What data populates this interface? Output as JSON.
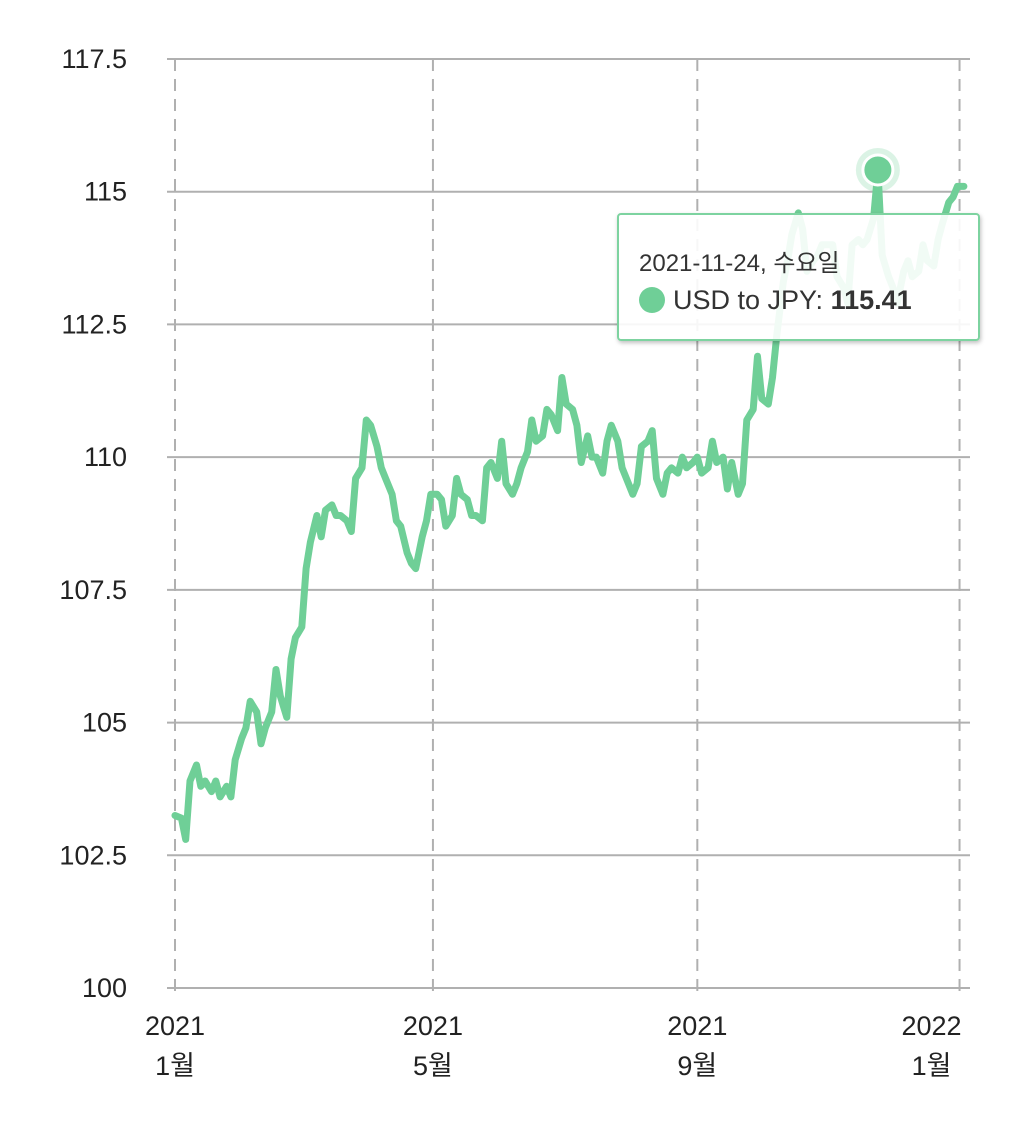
{
  "chart_data": {
    "type": "line",
    "title": "",
    "xlabel": "",
    "ylabel": "",
    "ylim": [
      100,
      117.5
    ],
    "xlim": [
      "2021-01-01",
      "2022-01-04"
    ],
    "yticks": [
      "100",
      "102.5",
      "105",
      "107.5",
      "110",
      "112.5",
      "115",
      "117.5"
    ],
    "xticks": [
      {
        "date": "2021-01-01",
        "year": "2021",
        "month": "1월"
      },
      {
        "date": "2021-05-01",
        "year": "2021",
        "month": "5월"
      },
      {
        "date": "2021-09-01",
        "year": "2021",
        "month": "9월"
      },
      {
        "date": "2022-01-01",
        "year": "2022",
        "month": "1월"
      }
    ],
    "grid": {
      "horizontal": "solid",
      "vertical": "dashed"
    },
    "series": [
      {
        "name": "USD to JPY",
        "color": "#6fcf97",
        "points": [
          [
            "2021-01-01",
            103.25
          ],
          [
            "2021-01-04",
            103.2
          ],
          [
            "2021-01-06",
            102.8
          ],
          [
            "2021-01-08",
            103.9
          ],
          [
            "2021-01-11",
            104.2
          ],
          [
            "2021-01-13",
            103.8
          ],
          [
            "2021-01-15",
            103.9
          ],
          [
            "2021-01-18",
            103.7
          ],
          [
            "2021-01-20",
            103.9
          ],
          [
            "2021-01-22",
            103.6
          ],
          [
            "2021-01-25",
            103.8
          ],
          [
            "2021-01-27",
            103.6
          ],
          [
            "2021-01-29",
            104.3
          ],
          [
            "2021-02-01",
            104.7
          ],
          [
            "2021-02-03",
            104.9
          ],
          [
            "2021-02-05",
            105.4
          ],
          [
            "2021-02-08",
            105.2
          ],
          [
            "2021-02-10",
            104.6
          ],
          [
            "2021-02-12",
            104.9
          ],
          [
            "2021-02-15",
            105.2
          ],
          [
            "2021-02-17",
            106.0
          ],
          [
            "2021-02-19",
            105.5
          ],
          [
            "2021-02-22",
            105.1
          ],
          [
            "2021-02-24",
            106.2
          ],
          [
            "2021-02-26",
            106.6
          ],
          [
            "2021-03-01",
            106.8
          ],
          [
            "2021-03-03",
            107.9
          ],
          [
            "2021-03-05",
            108.4
          ],
          [
            "2021-03-08",
            108.9
          ],
          [
            "2021-03-10",
            108.5
          ],
          [
            "2021-03-12",
            109.0
          ],
          [
            "2021-03-15",
            109.1
          ],
          [
            "2021-03-17",
            108.9
          ],
          [
            "2021-03-19",
            108.9
          ],
          [
            "2021-03-22",
            108.8
          ],
          [
            "2021-03-24",
            108.6
          ],
          [
            "2021-03-26",
            109.6
          ],
          [
            "2021-03-29",
            109.8
          ],
          [
            "2021-03-31",
            110.7
          ],
          [
            "2021-04-02",
            110.6
          ],
          [
            "2021-04-05",
            110.2
          ],
          [
            "2021-04-07",
            109.8
          ],
          [
            "2021-04-09",
            109.6
          ],
          [
            "2021-04-12",
            109.3
          ],
          [
            "2021-04-14",
            108.8
          ],
          [
            "2021-04-16",
            108.7
          ],
          [
            "2021-04-19",
            108.2
          ],
          [
            "2021-04-21",
            108.0
          ],
          [
            "2021-04-23",
            107.9
          ],
          [
            "2021-04-26",
            108.5
          ],
          [
            "2021-04-28",
            108.8
          ],
          [
            "2021-04-30",
            109.3
          ],
          [
            "2021-05-03",
            109.3
          ],
          [
            "2021-05-05",
            109.2
          ],
          [
            "2021-05-07",
            108.7
          ],
          [
            "2021-05-10",
            108.9
          ],
          [
            "2021-05-12",
            109.6
          ],
          [
            "2021-05-14",
            109.3
          ],
          [
            "2021-05-17",
            109.2
          ],
          [
            "2021-05-19",
            108.9
          ],
          [
            "2021-05-21",
            108.9
          ],
          [
            "2021-05-24",
            108.8
          ],
          [
            "2021-05-26",
            109.8
          ],
          [
            "2021-05-28",
            109.9
          ],
          [
            "2021-05-31",
            109.6
          ],
          [
            "2021-06-02",
            110.3
          ],
          [
            "2021-06-04",
            109.5
          ],
          [
            "2021-06-07",
            109.3
          ],
          [
            "2021-06-09",
            109.5
          ],
          [
            "2021-06-11",
            109.8
          ],
          [
            "2021-06-14",
            110.1
          ],
          [
            "2021-06-16",
            110.7
          ],
          [
            "2021-06-18",
            110.3
          ],
          [
            "2021-06-21",
            110.4
          ],
          [
            "2021-06-23",
            110.9
          ],
          [
            "2021-06-25",
            110.8
          ],
          [
            "2021-06-28",
            110.5
          ],
          [
            "2021-06-30",
            111.5
          ],
          [
            "2021-07-02",
            111.0
          ],
          [
            "2021-07-05",
            110.9
          ],
          [
            "2021-07-07",
            110.6
          ],
          [
            "2021-07-09",
            109.9
          ],
          [
            "2021-07-12",
            110.4
          ],
          [
            "2021-07-14",
            110.0
          ],
          [
            "2021-07-16",
            110.0
          ],
          [
            "2021-07-19",
            109.7
          ],
          [
            "2021-07-21",
            110.3
          ],
          [
            "2021-07-23",
            110.6
          ],
          [
            "2021-07-26",
            110.3
          ],
          [
            "2021-07-28",
            109.8
          ],
          [
            "2021-07-30",
            109.6
          ],
          [
            "2021-08-02",
            109.3
          ],
          [
            "2021-08-04",
            109.5
          ],
          [
            "2021-08-06",
            110.2
          ],
          [
            "2021-08-09",
            110.3
          ],
          [
            "2021-08-11",
            110.5
          ],
          [
            "2021-08-13",
            109.6
          ],
          [
            "2021-08-16",
            109.3
          ],
          [
            "2021-08-18",
            109.7
          ],
          [
            "2021-08-20",
            109.8
          ],
          [
            "2021-08-23",
            109.7
          ],
          [
            "2021-08-25",
            110.0
          ],
          [
            "2021-08-27",
            109.8
          ],
          [
            "2021-08-30",
            109.9
          ],
          [
            "2021-09-01",
            110.0
          ],
          [
            "2021-09-03",
            109.7
          ],
          [
            "2021-09-06",
            109.8
          ],
          [
            "2021-09-08",
            110.3
          ],
          [
            "2021-09-10",
            109.9
          ],
          [
            "2021-09-13",
            110.0
          ],
          [
            "2021-09-15",
            109.4
          ],
          [
            "2021-09-17",
            109.9
          ],
          [
            "2021-09-20",
            109.3
          ],
          [
            "2021-09-22",
            109.5
          ],
          [
            "2021-09-24",
            110.7
          ],
          [
            "2021-09-27",
            110.9
          ],
          [
            "2021-09-29",
            111.9
          ],
          [
            "2021-10-01",
            111.1
          ],
          [
            "2021-10-04",
            111.0
          ],
          [
            "2021-10-06",
            111.5
          ],
          [
            "2021-10-08",
            112.3
          ],
          [
            "2021-10-11",
            113.3
          ],
          [
            "2021-10-13",
            113.7
          ],
          [
            "2021-10-15",
            114.2
          ],
          [
            "2021-10-18",
            114.6
          ],
          [
            "2021-10-20",
            114.3
          ],
          [
            "2021-10-22",
            113.5
          ],
          [
            "2021-10-25",
            113.7
          ],
          [
            "2021-10-27",
            113.8
          ],
          [
            "2021-10-29",
            114.0
          ],
          [
            "2021-11-01",
            114.0
          ],
          [
            "2021-11-03",
            114.0
          ],
          [
            "2021-11-05",
            113.4
          ],
          [
            "2021-11-08",
            113.2
          ],
          [
            "2021-11-10",
            112.9
          ],
          [
            "2021-11-12",
            114.0
          ],
          [
            "2021-11-15",
            114.1
          ],
          [
            "2021-11-17",
            114.0
          ],
          [
            "2021-11-19",
            114.1
          ],
          [
            "2021-11-22",
            114.5
          ],
          [
            "2021-11-24",
            115.41
          ],
          [
            "2021-11-26",
            113.8
          ],
          [
            "2021-11-29",
            113.4
          ],
          [
            "2021-12-01",
            113.2
          ],
          [
            "2021-12-03",
            112.9
          ],
          [
            "2021-12-06",
            113.5
          ],
          [
            "2021-12-08",
            113.7
          ],
          [
            "2021-12-10",
            113.4
          ],
          [
            "2021-12-13",
            113.5
          ],
          [
            "2021-12-15",
            114.0
          ],
          [
            "2021-12-17",
            113.7
          ],
          [
            "2021-12-20",
            113.6
          ],
          [
            "2021-12-22",
            114.1
          ],
          [
            "2021-12-24",
            114.4
          ],
          [
            "2021-12-27",
            114.8
          ],
          [
            "2021-12-29",
            114.9
          ],
          [
            "2021-12-31",
            115.1
          ],
          [
            "2022-01-03",
            115.1
          ]
        ]
      }
    ],
    "highlight": {
      "date": "2021-11-24",
      "value": 115.41
    }
  },
  "tooltip": {
    "date_text": "2021-11-24, 수요일",
    "series_label": "USD to JPY:",
    "value_text": "115.41",
    "dot_color": "#6fcf97"
  },
  "colors": {
    "line": "#6fcf97",
    "grid": "#b0b0b0",
    "tooltip_border": "#7dd3a0"
  }
}
